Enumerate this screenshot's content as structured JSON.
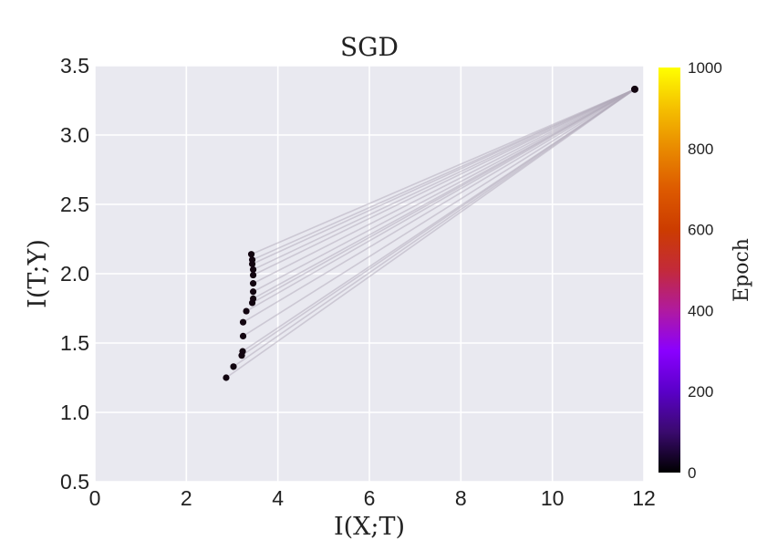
{
  "chart_data": {
    "type": "scatter",
    "title": "SGD",
    "xlabel": "I(X;T)",
    "ylabel": "I(T;Y)",
    "xlim": [
      0,
      12
    ],
    "ylim": [
      0.5,
      3.5
    ],
    "x_ticks": [
      "0",
      "2",
      "4",
      "6",
      "8",
      "10",
      "12"
    ],
    "y_ticks": [
      "0.5",
      "1.0",
      "1.5",
      "2.0",
      "2.5",
      "3.0",
      "3.5"
    ],
    "grid": true,
    "background": "#e9e9f0",
    "colorbar": {
      "label": "Epoch",
      "range": [
        0,
        1000
      ],
      "ticks": [
        "0",
        "200",
        "400",
        "600",
        "800",
        "1000"
      ],
      "colormap": "gnuplot"
    },
    "connecting_line_color": "#b0a8b8",
    "anchor_point": {
      "x": 11.8,
      "y": 3.33
    },
    "points": [
      {
        "x": 3.42,
        "y": 2.14,
        "epoch": 0
      },
      {
        "x": 3.44,
        "y": 2.1,
        "epoch": 0
      },
      {
        "x": 3.44,
        "y": 2.07,
        "epoch": 0
      },
      {
        "x": 3.46,
        "y": 2.03,
        "epoch": 0
      },
      {
        "x": 3.46,
        "y": 1.99,
        "epoch": 0
      },
      {
        "x": 3.46,
        "y": 1.93,
        "epoch": 0
      },
      {
        "x": 3.46,
        "y": 1.87,
        "epoch": 0
      },
      {
        "x": 3.46,
        "y": 1.82,
        "epoch": 0
      },
      {
        "x": 3.44,
        "y": 1.79,
        "epoch": 0
      },
      {
        "x": 3.31,
        "y": 1.73,
        "epoch": 0
      },
      {
        "x": 3.24,
        "y": 1.65,
        "epoch": 0
      },
      {
        "x": 3.24,
        "y": 1.55,
        "epoch": 0
      },
      {
        "x": 3.23,
        "y": 1.44,
        "epoch": 0
      },
      {
        "x": 3.21,
        "y": 1.41,
        "epoch": 0
      },
      {
        "x": 3.03,
        "y": 1.33,
        "epoch": 0
      },
      {
        "x": 2.87,
        "y": 1.25,
        "epoch": 0
      }
    ]
  }
}
